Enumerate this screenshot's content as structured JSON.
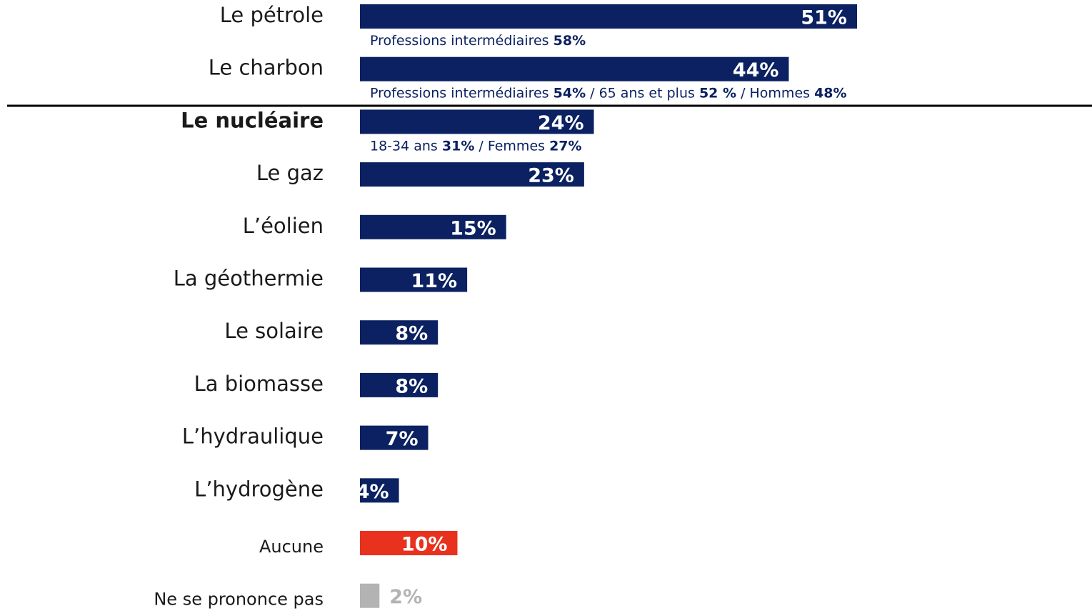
{
  "chart_data": {
    "type": "bar",
    "orientation": "horizontal",
    "categories": [
      "Le pétrole",
      "Le charbon",
      "Le nucléaire",
      "Le gaz",
      "L’éolien",
      "La géothermie",
      "Le solaire",
      "La biomasse",
      "L’hydraulique",
      "L’hydrogène",
      "Aucune",
      "Ne se prononce pas"
    ],
    "values": [
      51,
      44,
      24,
      23,
      15,
      11,
      8,
      8,
      7,
      4,
      10,
      2
    ],
    "value_labels": [
      "51%",
      "44%",
      "24%",
      "23%",
      "15%",
      "11%",
      "8%",
      "8%",
      "7%",
      "4%",
      "10%",
      "2%"
    ],
    "colors": [
      "#0b2161",
      "#0b2161",
      "#0b2161",
      "#0b2161",
      "#0b2161",
      "#0b2161",
      "#0b2161",
      "#0b2161",
      "#0b2161",
      "#0b2161",
      "#e8321e",
      "#b3b3b3"
    ],
    "label_colors": [
      "#ffffff",
      "#ffffff",
      "#ffffff",
      "#ffffff",
      "#ffffff",
      "#ffffff",
      "#ffffff",
      "#ffffff",
      "#ffffff",
      "#ffffff",
      "#ffffff",
      "#b3b3b3"
    ],
    "label_styles": [
      "normal",
      "normal",
      "bold",
      "normal",
      "normal",
      "normal",
      "normal",
      "normal",
      "normal",
      "normal",
      "small",
      "small"
    ],
    "xlim": [
      0,
      51
    ],
    "separator": " / ",
    "annotations": [
      [
        {
          "text": "Professions intermédiaires ",
          "value": 58,
          "value_label": "58%"
        }
      ],
      [
        {
          "text": "Professions intermédiaires ",
          "value": 54,
          "value_label": "54%"
        },
        {
          "text": "65 ans et plus ",
          "value": 52,
          "value_label": "52 %"
        },
        {
          "text": "Hommes ",
          "value": 48,
          "value_label": "48%"
        }
      ],
      [
        {
          "text": "18-34 ans ",
          "value": 31,
          "value_label": "31%"
        },
        {
          "text": "Femmes ",
          "value": 27,
          "value_label": "27%"
        }
      ],
      [],
      [],
      [],
      [],
      [],
      [],
      [],
      [],
      []
    ]
  }
}
